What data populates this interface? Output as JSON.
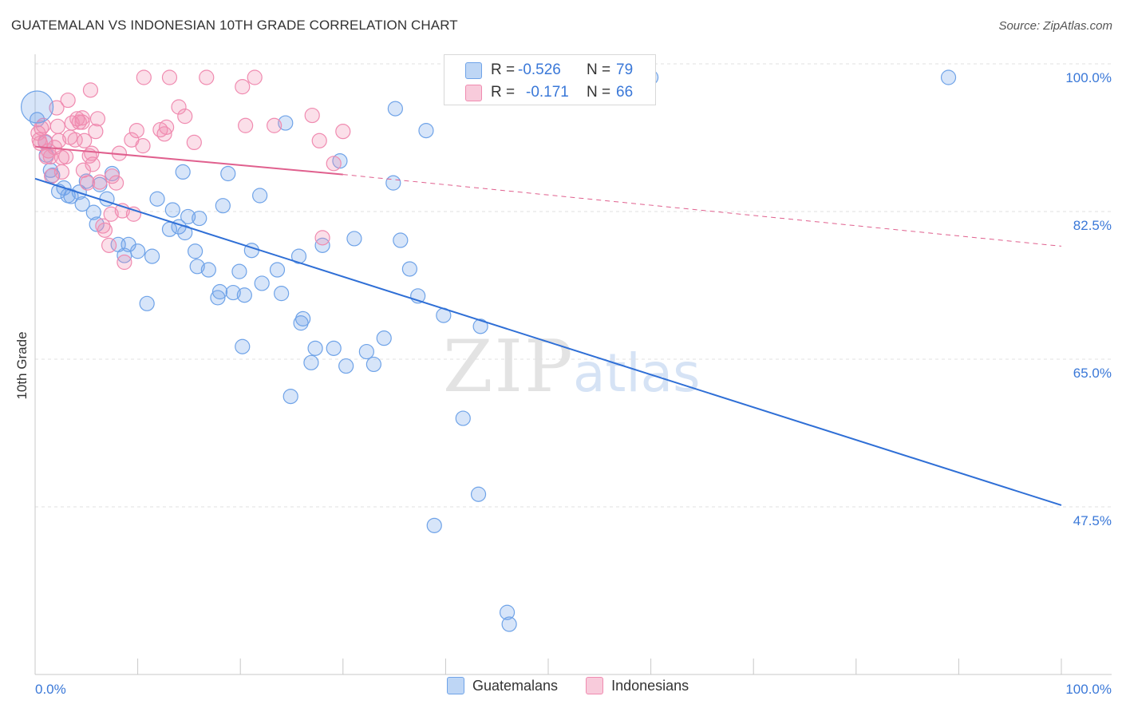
{
  "title": "GUATEMALAN VS INDONESIAN 10TH GRADE CORRELATION CHART",
  "source": "Source: ZipAtlas.com",
  "watermark": {
    "zip": "ZIP",
    "atlas": "atlas"
  },
  "stats": [
    {
      "r_label": "R =",
      "r_value": "-0.526",
      "n_label": "N =",
      "n_value": "79"
    },
    {
      "r_label": "R =",
      "r_value": "-0.171",
      "n_label": "N =",
      "n_value": "66"
    }
  ],
  "legend": [
    {
      "label": "Guatemalans",
      "color": "#6fa3e8"
    },
    {
      "label": "Indonesians",
      "color": "#f08bb0"
    }
  ],
  "chart_data": {
    "type": "scatter",
    "title": "GUATEMALAN VS INDONESIAN 10TH GRADE CORRELATION CHART",
    "xlabel": "",
    "ylabel": "10th Grade",
    "xlim": [
      0,
      100
    ],
    "ylim": [
      30,
      101.5
    ],
    "x_tick_labels": [
      "0.0%",
      "100.0%"
    ],
    "y_ticks": [
      47.5,
      65.0,
      82.5,
      100.0
    ],
    "y_tick_labels": [
      "47.5%",
      "65.0%",
      "82.5%",
      "100.0%"
    ],
    "grid": true,
    "legend_position": "bottom-center",
    "colors": {
      "guatemalans": "#6fa3e8",
      "indonesians": "#f08bb0",
      "blue_line": "#2f6fd6",
      "pink_line": "#e0608e",
      "axis_text": "#3a78d8"
    },
    "series": [
      {
        "name": "Guatemalans",
        "color": "#6fa3e8",
        "x": [
          0.2,
          1.0,
          1.1,
          1.5,
          1.7,
          2.3,
          2.8,
          3.2,
          3.5,
          4.3,
          4.6,
          5.0,
          5.7,
          6.0,
          6.3,
          7.0,
          7.5,
          8.1,
          8.7,
          9.1,
          10.0,
          10.9,
          11.4,
          11.9,
          13.1,
          13.4,
          14.0,
          14.4,
          14.6,
          14.9,
          15.6,
          15.8,
          16.0,
          16.9,
          17.8,
          18.0,
          18.3,
          18.8,
          19.3,
          19.9,
          20.2,
          20.4,
          21.1,
          21.9,
          22.1,
          23.6,
          24.0,
          24.4,
          24.9,
          25.7,
          25.9,
          26.1,
          26.9,
          27.3,
          28.0,
          29.1,
          29.7,
          30.3,
          31.1,
          32.3,
          33.0,
          34.0,
          34.9,
          35.1,
          35.6,
          36.5,
          37.3,
          38.1,
          38.9,
          39.8,
          41.7,
          43.2,
          43.4,
          46.0,
          46.2,
          52.0,
          57.7,
          60.0,
          89.0
        ],
        "y": [
          95.0,
          92.3,
          90.8,
          89.0,
          88.4,
          86.5,
          86.9,
          86.0,
          85.9,
          86.4,
          85.0,
          87.7,
          84.0,
          82.6,
          87.3,
          85.6,
          88.6,
          80.2,
          78.9,
          80.2,
          79.4,
          73.2,
          78.8,
          85.6,
          82.0,
          84.3,
          82.3,
          88.8,
          81.6,
          83.5,
          79.4,
          77.6,
          83.3,
          77.2,
          73.9,
          74.6,
          84.8,
          88.6,
          74.5,
          77.0,
          68.1,
          74.2,
          79.5,
          86.0,
          75.6,
          77.2,
          74.4,
          94.6,
          62.2,
          78.8,
          70.9,
          71.4,
          66.2,
          67.9,
          80.1,
          67.9,
          90.1,
          65.8,
          80.9,
          67.5,
          66.0,
          69.1,
          87.5,
          96.3,
          80.7,
          77.3,
          74.1,
          93.7,
          46.9,
          71.8,
          59.6,
          50.6,
          70.5,
          36.6,
          35.2,
          100.0,
          100.0,
          100.0,
          100.0
        ]
      },
      {
        "name": "Indonesians",
        "color": "#f08bb0",
        "x": [
          0.3,
          0.4,
          0.5,
          0.6,
          0.8,
          1.0,
          1.1,
          1.3,
          1.5,
          1.6,
          1.9,
          2.1,
          2.2,
          2.3,
          2.6,
          2.6,
          3.0,
          3.2,
          3.4,
          3.6,
          3.9,
          4.1,
          4.3,
          4.6,
          4.6,
          4.7,
          4.8,
          5.1,
          5.3,
          5.4,
          5.5,
          5.6,
          5.9,
          6.1,
          6.3,
          6.6,
          6.8,
          7.2,
          7.4,
          7.5,
          7.9,
          8.2,
          8.5,
          8.7,
          9.4,
          9.6,
          9.9,
          10.5,
          10.6,
          12.2,
          12.6,
          12.8,
          13.1,
          14.0,
          14.6,
          15.5,
          16.7,
          20.2,
          20.5,
          21.4,
          23.3,
          27.0,
          27.7,
          28.0,
          29.1,
          30.0
        ],
        "y": [
          93.4,
          92.6,
          92.2,
          94.0,
          94.3,
          92.4,
          90.6,
          91.3,
          90.6,
          88.3,
          91.7,
          96.4,
          94.2,
          92.5,
          90.5,
          88.8,
          90.6,
          97.3,
          92.9,
          94.6,
          92.6,
          95.1,
          94.7,
          95.2,
          94.7,
          89.0,
          92.5,
          87.5,
          90.7,
          98.5,
          91.0,
          89.7,
          93.6,
          95.1,
          87.6,
          82.4,
          81.9,
          80.1,
          83.8,
          88.3,
          87.5,
          91.0,
          84.2,
          78.1,
          92.6,
          83.8,
          93.7,
          91.9,
          100.0,
          93.8,
          93.3,
          94.1,
          100.0,
          96.5,
          95.4,
          92.3,
          100.0,
          98.9,
          94.3,
          100.0,
          94.3,
          95.5,
          92.5,
          81.0,
          89.8,
          93.6
        ]
      }
    ],
    "trendlines": [
      {
        "series": "Guatemalans",
        "x": [
          0,
          100
        ],
        "y": [
          88.0,
          49.3
        ],
        "style": "solid"
      },
      {
        "series": "Indonesians",
        "x": [
          0,
          30
        ],
        "y": [
          91.8,
          88.5
        ],
        "style": "solid"
      },
      {
        "series": "Indonesians",
        "x": [
          30,
          100
        ],
        "y": [
          88.5,
          80.0
        ],
        "style": "dashed"
      }
    ]
  }
}
